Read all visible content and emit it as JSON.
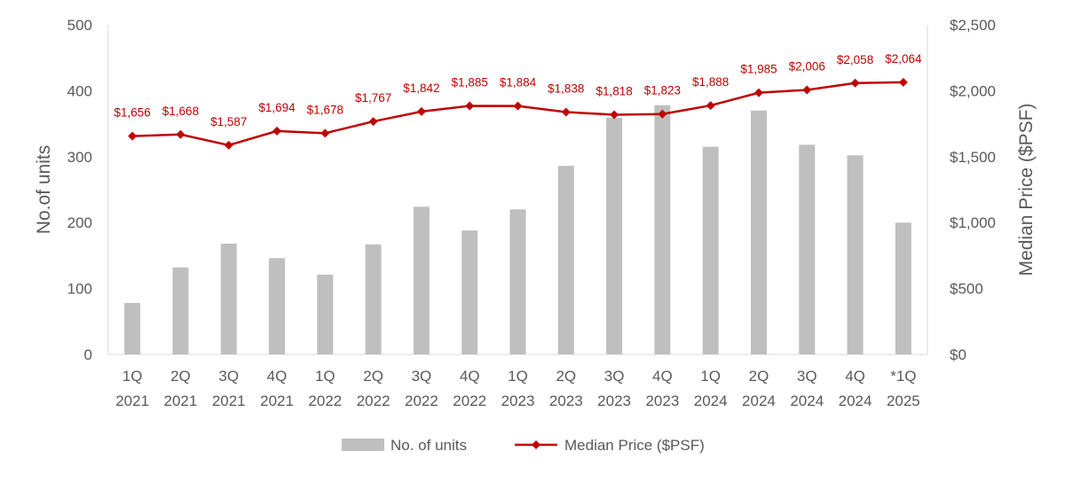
{
  "chart_data": {
    "type": "bar+line",
    "categories": [
      [
        "1Q",
        "2021"
      ],
      [
        "2Q",
        "2021"
      ],
      [
        "3Q",
        "2021"
      ],
      [
        "4Q",
        "2021"
      ],
      [
        "1Q",
        "2022"
      ],
      [
        "2Q",
        "2022"
      ],
      [
        "3Q",
        "2022"
      ],
      [
        "4Q",
        "2022"
      ],
      [
        "1Q",
        "2023"
      ],
      [
        "2Q",
        "2023"
      ],
      [
        "3Q",
        "2023"
      ],
      [
        "4Q",
        "2023"
      ],
      [
        "1Q",
        "2024"
      ],
      [
        "2Q",
        "2024"
      ],
      [
        "3Q",
        "2024"
      ],
      [
        "4Q",
        "2024"
      ],
      [
        "*1Q",
        "2025"
      ]
    ],
    "series": [
      {
        "name": "No. of units",
        "type": "bar",
        "axis": "left",
        "color": "#BFBFBF",
        "values": [
          78,
          132,
          168,
          146,
          121,
          167,
          224,
          188,
          220,
          286,
          359,
          378,
          315,
          370,
          318,
          302,
          200
        ]
      },
      {
        "name": "Median Price ($PSF)",
        "type": "line",
        "axis": "right",
        "color": "#C00000",
        "values": [
          1656,
          1668,
          1587,
          1694,
          1678,
          1767,
          1842,
          1885,
          1884,
          1838,
          1818,
          1823,
          1888,
          1985,
          2006,
          2058,
          2064
        ],
        "labels": [
          "$1,656",
          "$1,668",
          "$1,587",
          "$1,694",
          "$1,678",
          "$1,767",
          "$1,842",
          "$1,885",
          "$1,884",
          "$1,838",
          "$1,818",
          "$1,823",
          "$1,888",
          "$1,985",
          "$2,006",
          "$2,058",
          "$2,064"
        ]
      }
    ],
    "ylabel": "No.of units",
    "y2label": "Median Price ($PSF)",
    "ylim": [
      0,
      500
    ],
    "y2lim": [
      0,
      2500
    ],
    "yticks": [
      "0",
      "100",
      "200",
      "300",
      "400",
      "500"
    ],
    "y2ticks": [
      "$0",
      "$500",
      "$1,000",
      "$1,500",
      "$2,000",
      "$2,500"
    ],
    "grid": false,
    "legend_position": "bottom"
  }
}
